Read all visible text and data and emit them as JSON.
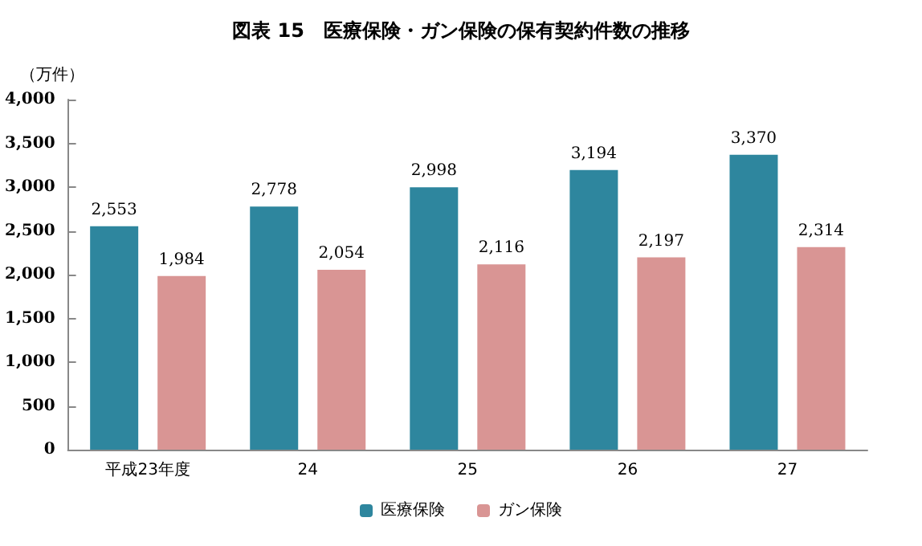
{
  "chart_data": {
    "type": "bar",
    "title": "図表 15　医療保険・ガン保険の保有契約件数の推移",
    "ylabel": "（万件）",
    "categories": [
      "平成23年度",
      "24",
      "25",
      "26",
      "27"
    ],
    "series": [
      {
        "name": "医療保険",
        "color": "#2e869e",
        "values": [
          2553,
          2778,
          2998,
          3194,
          3370
        ],
        "value_labels": [
          "2,553",
          "2,778",
          "2,998",
          "3,194",
          "3,370"
        ]
      },
      {
        "name": "ガン保険",
        "color": "#d99594",
        "values": [
          1984,
          2054,
          2116,
          2197,
          2314
        ],
        "value_labels": [
          "1,984",
          "2,054",
          "2,116",
          "2,197",
          "2,314"
        ]
      }
    ],
    "ylim": [
      0,
      4000
    ],
    "yticks": [
      {
        "value": 0,
        "label": "0"
      },
      {
        "value": 500,
        "label": "500"
      },
      {
        "value": 1000,
        "label": "1,000"
      },
      {
        "value": 1500,
        "label": "1,500"
      },
      {
        "value": 2000,
        "label": "2,000"
      },
      {
        "value": 2500,
        "label": "2,500"
      },
      {
        "value": 3000,
        "label": "3,000"
      },
      {
        "value": 3500,
        "label": "3,500"
      },
      {
        "value": 4000,
        "label": "4,000"
      }
    ],
    "legend": "bottom",
    "grid": false
  }
}
